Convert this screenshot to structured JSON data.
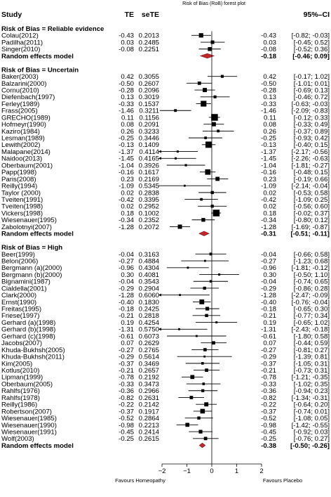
{
  "chart_data": {
    "type": "forest",
    "title": "Risk of Bias (RoB) forest plot",
    "columns": {
      "study": "Study",
      "te": "TE",
      "sete": "seTE",
      "ci": "95%–CI"
    },
    "x_axis": {
      "ticks": [
        "−2",
        "−1",
        "0",
        "1",
        "2"
      ],
      "tick_values": [
        -2,
        -1,
        0,
        1,
        2
      ],
      "range": [
        -2.5,
        2.5
      ],
      "reference_line": 0
    },
    "favours_left": "Favours Homeopathy",
    "favours_right": "Favours Placebo",
    "groups": [
      {
        "header": "Risk of Bias = Reliable evidence",
        "studies": [
          {
            "study": "Colau(2012)",
            "te": "-0.43",
            "sete": "0.2013",
            "est": -0.43,
            "lo": -0.82,
            "hi": -0.03,
            "ci": "-0.43  [-0.82; -0.03]"
          },
          {
            "study": "Padilha(2011)",
            "te": "0.03",
            "sete": "0.2485",
            "est": 0.03,
            "lo": -0.45,
            "hi": 0.52,
            "ci": "0.03  [-0.45; 0.52]"
          },
          {
            "study": "Singer(2010)",
            "te": "-0.08",
            "sete": "0.2251",
            "est": -0.08,
            "lo": -0.52,
            "hi": 0.36,
            "ci": "-0.08  [-0.52; 0.36]"
          }
        ],
        "pooled": {
          "label": "Random effects model",
          "est": -0.18,
          "lo": -0.46,
          "hi": 0.09,
          "ci": "-0.18  [-0.46; 0.09]"
        }
      },
      {
        "header": "Risk of Bias = Uncertain",
        "studies": [
          {
            "study": "Baker(2003)",
            "te": "0.42",
            "sete": "0.3055",
            "est": 0.42,
            "lo": -0.17,
            "hi": 1.02,
            "ci": "0.42  [-0.17; 1.02]"
          },
          {
            "study": "Balzarini(2000)",
            "te": "-0.50",
            "sete": "0.2607",
            "est": -0.5,
            "lo": -1.01,
            "hi": 0.01,
            "ci": "-0.50  [-1.01; 0.01]"
          },
          {
            "study": "Cornu(2010)",
            "te": "-0.28",
            "sete": "0.2096",
            "est": -0.28,
            "lo": -0.69,
            "hi": 0.13,
            "ci": "-0.28  [-0.69; 0.13]"
          },
          {
            "study": "Diefenbach(1997)",
            "te": "0.13",
            "sete": "0.3019",
            "est": 0.13,
            "lo": -0.46,
            "hi": 0.72,
            "ci": "0.13  [-0.46; 0.72]"
          },
          {
            "study": "Ferley(1989)",
            "te": "-0.33",
            "sete": "0.1537",
            "est": -0.33,
            "lo": -0.63,
            "hi": -0.03,
            "ci": "-0.33  [-0.63; -0.03]"
          },
          {
            "study": "Frass(2005)",
            "te": "-1.46",
            "sete": "0.3211",
            "est": -1.46,
            "lo": -2.09,
            "hi": -0.83,
            "ci": "-1.46  [-2.09; -0.83]"
          },
          {
            "study": "GRECHO(1989)",
            "te": "0.11",
            "sete": "0.1156",
            "est": 0.11,
            "lo": -0.12,
            "hi": 0.33,
            "ci": "0.11  [-0.12; 0.33]"
          },
          {
            "study": "Hofmeyr(1990)",
            "te": "0.08",
            "sete": "0.2091",
            "est": 0.08,
            "lo": -0.33,
            "hi": 0.49,
            "ci": "0.08  [-0.33; 0.49]"
          },
          {
            "study": "Kaziro(1984)",
            "te": "0.26",
            "sete": "0.3233",
            "est": 0.26,
            "lo": -0.37,
            "hi": 0.89,
            "ci": "0.26  [-0.37; 0.89]"
          },
          {
            "study": "Lesman(1989)",
            "te": "-0.25",
            "sete": "0.3446",
            "est": -0.25,
            "lo": -0.93,
            "hi": 0.42,
            "ci": "-0.25  [-0.93; 0.42]"
          },
          {
            "study": "Lewith(2002)",
            "te": "-0.13",
            "sete": "0.1409",
            "est": -0.13,
            "lo": -0.4,
            "hi": 0.15,
            "ci": "-0.13  [-0.40; 0.15]"
          },
          {
            "study": "Malapane(2014)",
            "te": "-1.37",
            "sete": "0.4114",
            "est": -1.37,
            "lo": -2.17,
            "hi": -0.56,
            "ci": "-1.37  [-2.17; -0.56]"
          },
          {
            "study": "Naidoo(2013)",
            "te": "-1.45",
            "sete": "0.4165",
            "est": -1.45,
            "lo": -2.26,
            "hi": -0.63,
            "ci": "-1.45  [-2.26; -0.63]"
          },
          {
            "study": "Oberbaum(2001)",
            "te": "-1.04",
            "sete": "0.3926",
            "est": -1.04,
            "lo": -1.81,
            "hi": -0.27,
            "ci": "-1.04  [-1.81; -0.27]"
          },
          {
            "study": "Papp(1998)",
            "te": "-0.16",
            "sete": "0.1617",
            "est": -0.16,
            "lo": -0.48,
            "hi": 0.15,
            "ci": "-0.16  [-0.48; 0.15]"
          },
          {
            "study": "Paris(2008)",
            "te": "0.23",
            "sete": "0.2169",
            "est": 0.23,
            "lo": -0.19,
            "hi": 0.66,
            "ci": "0.23  [-0.19; 0.66]"
          },
          {
            "study": "Reilly(1994)",
            "te": "-1.09",
            "sete": "0.5345",
            "est": -1.09,
            "lo": -2.14,
            "hi": -0.04,
            "ci": "-1.09  [-2.14; -0.04]"
          },
          {
            "study": "Taylor (2000)",
            "te": "0.02",
            "sete": "0.2838",
            "est": 0.02,
            "lo": -0.53,
            "hi": 0.58,
            "ci": "0.02  [-0.53; 0.58]"
          },
          {
            "study": "Tveiten(1991)",
            "te": "-0.42",
            "sete": "0.3395",
            "est": -0.42,
            "lo": -1.09,
            "hi": 0.25,
            "ci": "-0.42  [-1.09; 0.25]"
          },
          {
            "study": "Tveiten(1998)",
            "te": "0.02",
            "sete": "0.2952",
            "est": 0.02,
            "lo": -0.56,
            "hi": 0.6,
            "ci": "0.02  [-0.56; 0.60]"
          },
          {
            "study": "Vickers(1998)",
            "te": "0.18",
            "sete": "0.1002",
            "est": 0.18,
            "lo": -0.02,
            "hi": 0.37,
            "ci": "0.18  [-0.02; 0.37]"
          },
          {
            "study": "Wiesenauer(1995)",
            "te": "-0.34",
            "sete": "0.2352",
            "est": -0.34,
            "lo": -0.8,
            "hi": 0.12,
            "ci": "-0.34  [-0.80; 0.12]"
          },
          {
            "study": "Zabolotnyi(2007)",
            "te": "-1.28",
            "sete": "0.2072",
            "est": -1.28,
            "lo": -1.69,
            "hi": -0.87,
            "ci": "-1.28  [-1.69; -0.87]"
          }
        ],
        "pooled": {
          "label": "Random effects model",
          "est": -0.31,
          "lo": -0.51,
          "hi": -0.11,
          "ci": "-0.31  [-0.51; -0.11]"
        }
      },
      {
        "header": "Risk of Bias = High",
        "studies": [
          {
            "study": "Beer(1999)",
            "te": "-0.04",
            "sete": "0.3163",
            "est": -0.04,
            "lo": -0.66,
            "hi": 0.58,
            "ci": "-0.04  [-0.66; 0.58]"
          },
          {
            "study": "Belon(2006)",
            "te": "-0.27",
            "sete": "0.4884",
            "est": -0.27,
            "lo": -1.23,
            "hi": 0.68,
            "ci": "-0.27  [-1.23; 0.68]"
          },
          {
            "study": "Bergmann (a)(2000)",
            "te": "-0.96",
            "sete": "0.4304",
            "est": -0.96,
            "lo": -1.81,
            "hi": -0.12,
            "ci": "-0.96  [-1.81; -0.12]"
          },
          {
            "study": "Bergmann (b)(2000)",
            "te": "0.30",
            "sete": "0.4081",
            "est": 0.3,
            "lo": -0.5,
            "hi": 1.1,
            "ci": "0.30  [-0.50; 1.10]"
          },
          {
            "study": "Bignamini(1987)",
            "te": "-0.04",
            "sete": "0.3543",
            "est": -0.04,
            "lo": -0.74,
            "hi": 0.65,
            "ci": "-0.04  [-0.74; 0.65]"
          },
          {
            "study": "Cialdella(2001)",
            "te": "-0.29",
            "sete": "0.2904",
            "est": -0.29,
            "lo": -0.86,
            "hi": 0.28,
            "ci": "-0.29  [-0.86; 0.28]"
          },
          {
            "study": "Clark(2000)",
            "te": "-1.28",
            "sete": "0.6060",
            "est": -1.28,
            "lo": -2.47,
            "hi": -0.09,
            "ci": "-1.28  [-2.47; -0.09]"
          },
          {
            "study": "Ernst(1990)",
            "te": "-0.40",
            "sete": "0.1830",
            "est": -0.4,
            "lo": -0.76,
            "hi": -0.04,
            "ci": "-0.40  [-0.76; -0.04]"
          },
          {
            "study": "Freitas(1995)",
            "te": "-0.18",
            "sete": "0.2425",
            "est": -0.18,
            "lo": -0.65,
            "hi": 0.3,
            "ci": "-0.18  [-0.65; 0.30]"
          },
          {
            "study": "Friese(1997)",
            "te": "-0.21",
            "sete": "0.2818",
            "est": -0.21,
            "lo": -0.77,
            "hi": 0.34,
            "ci": "-0.21  [-0.77; 0.34]"
          },
          {
            "study": "Gerhard (a)(1998)",
            "te": "0.19",
            "sete": "0.4254",
            "est": 0.19,
            "lo": -0.65,
            "hi": 1.02,
            "ci": "0.19  [-0.65; 1.02]"
          },
          {
            "study": "Gerhard (b)(1998)",
            "te": "-1.31",
            "sete": "0.5750",
            "est": -1.31,
            "lo": -2.44,
            "hi": -0.18,
            "ci": "-1.31  [-2.43; -0.18]"
          },
          {
            "study": "Gerhard (c)(1998)",
            "te": "-0.61",
            "sete": "0.6073",
            "est": -0.61,
            "lo": -1.8,
            "hi": 0.58,
            "ci": "-0.61  [-1.80; 0.58]"
          },
          {
            "study": "Jacobs(2007)",
            "te": "0.07",
            "sete": "0.2629",
            "est": 0.07,
            "lo": -0.44,
            "hi": 0.59,
            "ci": "0.07  [-0.44; 0.59]"
          },
          {
            "study": "Khuda-Bukhsh(2005)",
            "te": "-0.27",
            "sete": "0.2765",
            "est": -0.27,
            "lo": -0.81,
            "hi": 0.27,
            "ci": "-0.27  [-0.81; 0.27]"
          },
          {
            "study": "Khuda-Bukhsh(2011)",
            "te": "-0.29",
            "sete": "0.5614",
            "est": -0.29,
            "lo": -1.39,
            "hi": 0.81,
            "ci": "-0.29  [-1.39; 0.81]"
          },
          {
            "study": "Kim(2005)",
            "te": "-0.37",
            "sete": "0.3469",
            "est": -0.37,
            "lo": -1.05,
            "hi": 0.31,
            "ci": "-0.37  [-1.05; 0.31]"
          },
          {
            "study": "Kotlus(2010)",
            "te": "-0.21",
            "sete": "0.2657",
            "est": -0.21,
            "lo": -0.73,
            "hi": 0.31,
            "ci": "-0.21  [-0.73; 0.31]"
          },
          {
            "study": "Lipman(1999)",
            "te": "-0.78",
            "sete": "0.2192",
            "est": -0.78,
            "lo": -1.21,
            "hi": -0.35,
            "ci": "-0.78  [-1.21; -0.35]"
          },
          {
            "study": "Oberbaum(2005)",
            "te": "-0.33",
            "sete": "0.3473",
            "est": -0.33,
            "lo": -1.02,
            "hi": 0.35,
            "ci": "-0.33  [-1.02; 0.35]"
          },
          {
            "study": "Rahlfs(1976)",
            "te": "-0.36",
            "sete": "0.2966",
            "est": -0.36,
            "lo": -0.94,
            "hi": 0.23,
            "ci": "-0.36  [-0.94; 0.23]"
          },
          {
            "study": "Rahlfs(1978)",
            "te": "-0.82",
            "sete": "0.2631",
            "est": -0.82,
            "lo": -1.34,
            "hi": -0.31,
            "ci": "-0.82  [-1.34; -0.31]"
          },
          {
            "study": "Reilly(1986)",
            "te": "-0.22",
            "sete": "0.2142",
            "est": -0.22,
            "lo": -0.64,
            "hi": 0.2,
            "ci": "-0.22  [-0.64; 0.20]"
          },
          {
            "study": "Robertson(2007)",
            "te": "-0.37",
            "sete": "0.1917",
            "est": -0.37,
            "lo": -0.74,
            "hi": 0.01,
            "ci": "-0.37  [-0.74; 0.01]"
          },
          {
            "study": "Wiesenauer(1985)",
            "te": "-0.52",
            "sete": "0.2864",
            "est": -0.52,
            "lo": -1.08,
            "hi": 0.05,
            "ci": "-0.52  [-1.08; 0.05]"
          },
          {
            "study": "Wiesenauer(1990)",
            "te": "-0.98",
            "sete": "0.2213",
            "est": -0.98,
            "lo": -1.42,
            "hi": -0.55,
            "ci": "-0.98  [-1.42; -0.55]"
          },
          {
            "study": "Wiesenauer(1991)",
            "te": "-0.45",
            "sete": "0.2414",
            "est": -0.45,
            "lo": -0.92,
            "hi": 0.03,
            "ci": "-0.45  [-0.92; 0.03]"
          },
          {
            "study": "Wolf(2003)",
            "te": "-0.25",
            "sete": "0.2615",
            "est": -0.25,
            "lo": -0.76,
            "hi": 0.27,
            "ci": "-0.25  [-0.76; 0.27]"
          }
        ],
        "pooled": {
          "label": "Random effects model",
          "est": -0.38,
          "lo": -0.5,
          "hi": -0.26,
          "ci": "-0.38  [-0.50; -0.26]"
        }
      }
    ]
  }
}
